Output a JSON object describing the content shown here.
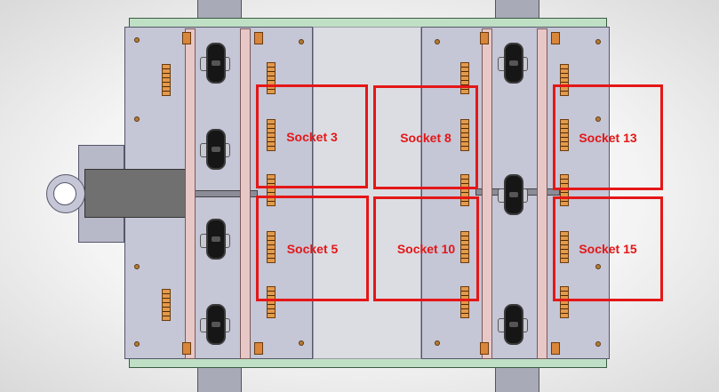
{
  "view": {
    "colors": {
      "plate": "#c5c6d6",
      "rail": "#bfe0c4",
      "socket_outline": "#e41717",
      "connector": "#e39a4a",
      "wheel": "#161616"
    }
  },
  "sockets": [
    {
      "label": "Socket 3"
    },
    {
      "label": "Socket 8"
    },
    {
      "label": "Socket 13"
    },
    {
      "label": "Socket 5"
    },
    {
      "label": "Socket 10"
    },
    {
      "label": "Socket 15"
    }
  ]
}
